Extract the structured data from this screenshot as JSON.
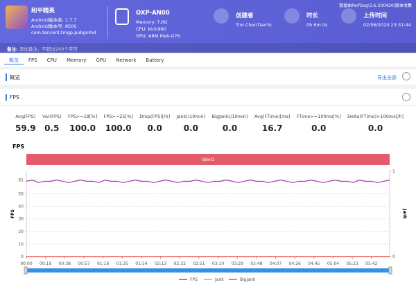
{
  "header": {
    "game": {
      "name": "和平精英",
      "version_name": "Android版本名: 1.7.7",
      "version_code": "Android版本号: 8500",
      "package": "com.tencent.tmgp.pubgmhd"
    },
    "device": {
      "model": "OXP-AN00",
      "memory": "Memory: 7.6G",
      "cpu": "CPU: kirin990",
      "gpu": "GPU: ARM Mali-G76"
    },
    "creator": {
      "label": "创建者",
      "value": "Tim ChenTianYu"
    },
    "duration": {
      "label": "时长",
      "value": "0h 6m 0s"
    },
    "upload_time": {
      "label": "上传时间",
      "value": "02/06/2020 23:31:44"
    },
    "collector": "数据由PerfDog(3.6.200420)版本收集",
    "note": {
      "label": "备注:",
      "placeholder": "添加备注，不超过200个字符"
    }
  },
  "tabs": [
    "概览",
    "FPS",
    "CPU",
    "Memory",
    "GPU",
    "Network",
    "Battery"
  ],
  "overview": {
    "title": "概览",
    "export": "导出全部"
  },
  "fps_panel": {
    "title": "FPS",
    "stats": [
      {
        "label": "Avg(FPS)",
        "value": "59.9"
      },
      {
        "label": "Var(FPS)",
        "value": "0.5"
      },
      {
        "label": "FPS>=18[%]",
        "value": "100.0"
      },
      {
        "label": "FPS>=25[%]",
        "value": "100.0"
      },
      {
        "label": "Drop(FPS)[/h]",
        "value": "0.0"
      },
      {
        "label": "Jank(/10min)",
        "value": "0.0"
      },
      {
        "label": "BigJank(/10min)",
        "value": "0.0"
      },
      {
        "label": "Avg(FTime)[ms]",
        "value": "16.7"
      },
      {
        "label": "FTime>=100ms[%]",
        "value": "0.0"
      },
      {
        "label": "Delta(FTime)>100ms[/h]",
        "value": "0.0"
      }
    ]
  },
  "chart_data": {
    "type": "line",
    "title": "FPS",
    "y_label": "FPS",
    "y2_label": "Jank",
    "annotation": "label1",
    "x": [
      0,
      6,
      12,
      18,
      24,
      30,
      36,
      42,
      48,
      54,
      60,
      66,
      72,
      78,
      84,
      90,
      96,
      102,
      108,
      114,
      120,
      126,
      132,
      138,
      144,
      150,
      156,
      162,
      168,
      174,
      180,
      186,
      192,
      198,
      204,
      210,
      216,
      222,
      228,
      234,
      240,
      246,
      252,
      258,
      264,
      270,
      276,
      282,
      288,
      294,
      300,
      306,
      312,
      318,
      324,
      330,
      336,
      342,
      348,
      354,
      360
    ],
    "series": [
      {
        "name": "FPS",
        "color": "#a53aa8",
        "values": [
          60,
          61,
          59,
          60,
          60,
          61,
          60,
          59,
          60,
          61,
          60,
          60,
          59,
          61,
          60,
          60,
          59,
          60,
          61,
          60,
          60,
          59,
          60,
          61,
          60,
          59,
          60,
          60,
          61,
          60,
          59,
          60,
          60,
          61,
          60,
          59,
          60,
          61,
          60,
          60,
          59,
          60,
          61,
          60,
          59,
          60,
          60,
          61,
          60,
          59,
          60,
          61,
          60,
          60,
          59,
          61,
          60,
          60,
          59,
          60,
          61
        ]
      },
      {
        "name": "Jank",
        "color": "#f0a040",
        "axis": "y2",
        "values": [
          0,
          0,
          0,
          0,
          0,
          0,
          0,
          0,
          0,
          0,
          0,
          0,
          0,
          0,
          0,
          0,
          0,
          0,
          0,
          0,
          0,
          0,
          0,
          0,
          0,
          0,
          0,
          0,
          0,
          0,
          0,
          0,
          0,
          0,
          0,
          0,
          0,
          0,
          0,
          0,
          0,
          0,
          0,
          0,
          0,
          0,
          0,
          0,
          0,
          0,
          0,
          0,
          0,
          0,
          0,
          0,
          0,
          0,
          0,
          0,
          0
        ]
      },
      {
        "name": "BigJank",
        "color": "#e05050",
        "axis": "y2",
        "values": [
          0,
          0,
          0,
          0,
          0,
          0,
          0,
          0,
          0,
          0,
          0,
          0,
          0,
          0,
          0,
          0,
          0,
          0,
          0,
          0,
          0,
          0,
          0,
          0,
          0,
          0,
          0,
          0,
          0,
          0,
          0,
          0,
          0,
          0,
          0,
          0,
          0,
          0,
          0,
          0,
          0,
          0,
          0,
          0,
          0,
          0,
          0,
          0,
          0,
          0,
          0,
          0,
          0,
          0,
          0,
          0,
          0,
          0,
          0,
          0,
          0
        ]
      }
    ],
    "xlim": [
      0,
      360
    ],
    "xticks": [
      {
        "value": 0,
        "label": "00:00"
      },
      {
        "value": 19,
        "label": "00:19"
      },
      {
        "value": 38,
        "label": "00:38"
      },
      {
        "value": 57,
        "label": "00:57"
      },
      {
        "value": 76,
        "label": "01:16"
      },
      {
        "value": 95,
        "label": "01:35"
      },
      {
        "value": 114,
        "label": "01:54"
      },
      {
        "value": 133,
        "label": "02:13"
      },
      {
        "value": 152,
        "label": "02:32"
      },
      {
        "value": 171,
        "label": "02:51"
      },
      {
        "value": 190,
        "label": "03:10"
      },
      {
        "value": 209,
        "label": "03:29"
      },
      {
        "value": 228,
        "label": "03:48"
      },
      {
        "value": 247,
        "label": "04:07"
      },
      {
        "value": 266,
        "label": "04:26"
      },
      {
        "value": 285,
        "label": "04:45"
      },
      {
        "value": 304,
        "label": "05:04"
      },
      {
        "value": 323,
        "label": "05:23"
      },
      {
        "value": 342,
        "label": "05:42"
      }
    ],
    "ylim": [
      0,
      68
    ],
    "yticks": [
      0,
      10,
      20,
      30,
      40,
      50,
      61
    ],
    "y2lim": [
      0,
      1
    ],
    "y2ticks": [
      0,
      1
    ],
    "grid": true
  }
}
